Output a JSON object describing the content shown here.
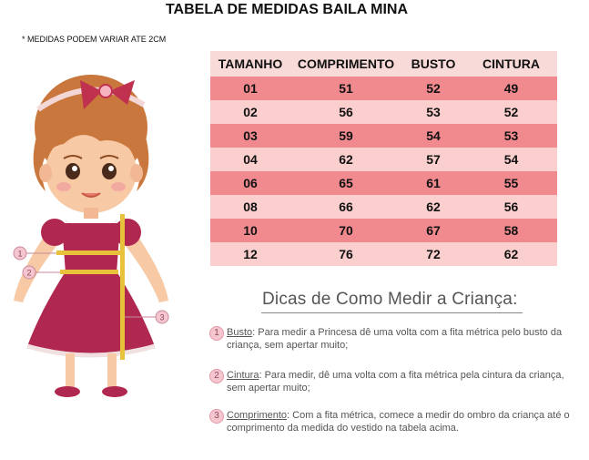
{
  "title": "TABELA DE MEDIDAS BAILA MINA",
  "note": "* MEDIDAS PODEM VARIAR ATE 2CM",
  "table": {
    "headers": [
      "TAMANHO",
      "COMPRIMENTO",
      "BUSTO",
      "CINTURA"
    ],
    "rows": [
      [
        "01",
        "51",
        "52",
        "49"
      ],
      [
        "02",
        "56",
        "53",
        "52"
      ],
      [
        "03",
        "59",
        "54",
        "53"
      ],
      [
        "04",
        "62",
        "57",
        "54"
      ],
      [
        "06",
        "65",
        "61",
        "55"
      ],
      [
        "08",
        "66",
        "62",
        "56"
      ],
      [
        "10",
        "70",
        "67",
        "58"
      ],
      [
        "12",
        "76",
        "72",
        "62"
      ]
    ]
  },
  "tips": {
    "heading": "Dicas de Como Medir a Criança:",
    "items": [
      {
        "num": "1",
        "term": "Busto",
        "text": ": Para medir a Princesa dê uma volta com a fita métrica pelo busto da criança, sem apertar muito;"
      },
      {
        "num": "2",
        "term": "Cintura",
        "text": ": Para medir, dê uma volta com a fita métrica pela cintura da criança, sem apertar muito;"
      },
      {
        "num": "3",
        "term": "Comprimento",
        "text": ": Com a fita métrica, comece a medir do ombro da criança até o comprimento da medida do vestido na tabela acima."
      }
    ]
  },
  "illustration": {
    "markers": [
      "1",
      "2",
      "3"
    ],
    "colors": {
      "dress": "#b0284f",
      "hair": "#c9773c",
      "skin": "#f7c9a4",
      "tape": "#e8c23a",
      "bow": "#c0304f"
    }
  }
}
